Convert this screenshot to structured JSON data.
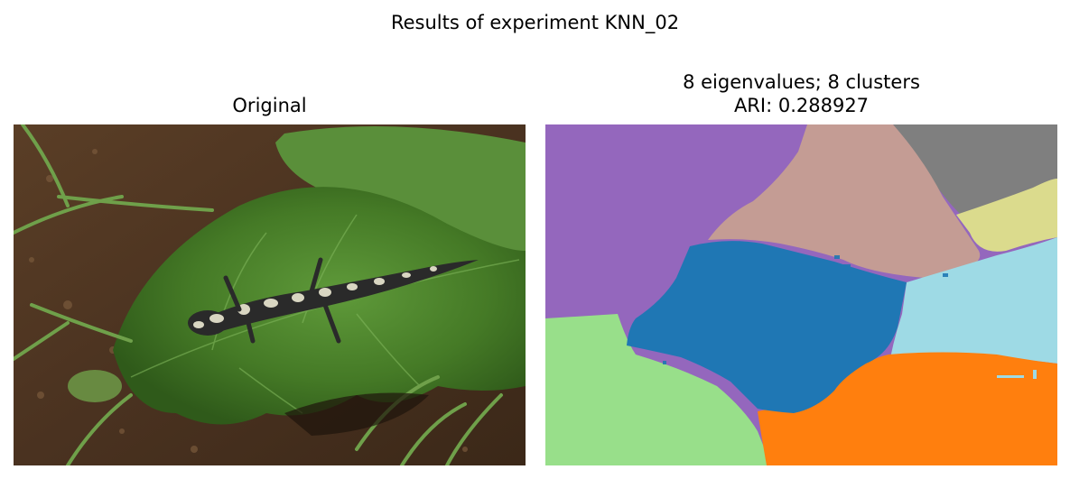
{
  "figure": {
    "suptitle": "Results of experiment KNN_02"
  },
  "panels": {
    "original": {
      "title": "Original",
      "description": "photo of a spotted salamander on a green leaf on dirt ground with grass"
    },
    "segmentation": {
      "title_line1": "8 eigenvalues; 8 clusters",
      "title_line2": "ARI: 0.288927",
      "cluster_colors": [
        "#9467bd",
        "#c49c94",
        "#7f7f7f",
        "#dbdb8d",
        "#1f77b4",
        "#9edae5",
        "#98df8a",
        "#ff7f0e"
      ]
    }
  }
}
